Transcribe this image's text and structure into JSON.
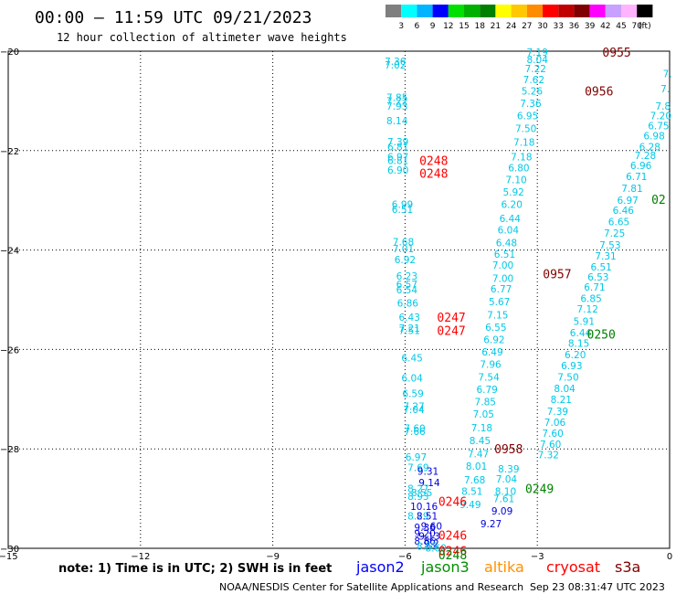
{
  "header": {
    "title": "00:00 – 11:59 UTC 09/21/2023",
    "subtitle": "12 hour collection of altimeter wave heights"
  },
  "legend": {
    "colors": [
      "#7f7f7f",
      "#00ffff",
      "#00b4ff",
      "#0000ff",
      "#00e000",
      "#00b000",
      "#008000",
      "#ffff00",
      "#ffc800",
      "#ff8c00",
      "#ff0000",
      "#c00000",
      "#800000",
      "#ff00ff",
      "#c8a0ff",
      "#ffb4ff",
      "#000000"
    ],
    "labels": [
      "3",
      "6",
      "9",
      "12",
      "15",
      "18",
      "21",
      "24",
      "27",
      "30",
      "33",
      "36",
      "39",
      "42",
      "45",
      "70",
      "(ft)"
    ]
  },
  "footer": {
    "note": "note: 1) Time is in UTC; 2) SWH is in feet",
    "credit": "NOAA/NESDIS Center for Satellite Applications and Research",
    "timestamp": "Sep 23 08:31:47 UTC 2023",
    "satellites": [
      {
        "name": "jason2",
        "color": "#0000ff"
      },
      {
        "name": "jason3",
        "color": "#009000"
      },
      {
        "name": "altika",
        "color": "#ff9000"
      },
      {
        "name": "cryosat",
        "color": "#ff0000"
      },
      {
        "name": "s3a",
        "color": "#800000"
      }
    ]
  },
  "chart_data": {
    "type": "scatter",
    "xlim": [
      -15,
      0
    ],
    "ylim": [
      -30,
      -20
    ],
    "x_ticks": [
      -15,
      -12,
      -9,
      -6,
      -3,
      0
    ],
    "y_ticks": [
      -20,
      -22,
      -24,
      -26,
      -28,
      -30
    ],
    "x_tick_labels": [
      "−15",
      "−12",
      "−9",
      "−6",
      "−3",
      "0"
    ],
    "y_tick_labels": [
      "−20",
      "−22",
      "−24",
      "−26",
      "−28",
      "−30"
    ],
    "grid": true,
    "color_key": {
      "cyan": "#00c8e6",
      "blue": "#0000e0",
      "orange": "#ff9000"
    },
    "points": [
      {
        "x": -6.22,
        "y": -20.2,
        "label": "7.36",
        "c": "cyan"
      },
      {
        "x": -6.22,
        "y": -20.28,
        "label": "7.02",
        "c": "cyan"
      },
      {
        "x": -6.18,
        "y": -20.93,
        "label": "7.85",
        "c": "cyan"
      },
      {
        "x": -6.18,
        "y": -21.0,
        "label": "7.22",
        "c": "cyan"
      },
      {
        "x": -6.18,
        "y": -21.1,
        "label": "7.93",
        "c": "cyan"
      },
      {
        "x": -6.18,
        "y": -21.4,
        "label": "8.14",
        "c": "cyan"
      },
      {
        "x": -6.16,
        "y": -21.82,
        "label": "7.39",
        "c": "cyan"
      },
      {
        "x": -6.16,
        "y": -21.92,
        "label": "6.81",
        "c": "cyan"
      },
      {
        "x": -6.16,
        "y": -22.12,
        "label": "6.97",
        "c": "cyan"
      },
      {
        "x": -6.16,
        "y": -22.2,
        "label": "6.81",
        "c": "cyan"
      },
      {
        "x": -6.16,
        "y": -22.39,
        "label": "6.90",
        "c": "cyan"
      },
      {
        "x": -6.06,
        "y": -23.08,
        "label": "6.99",
        "c": "cyan"
      },
      {
        "x": -6.06,
        "y": -23.18,
        "label": "6.51",
        "c": "cyan"
      },
      {
        "x": -6.04,
        "y": -23.83,
        "label": "7.68",
        "c": "cyan"
      },
      {
        "x": -6.04,
        "y": -23.97,
        "label": "7.01",
        "c": "cyan"
      },
      {
        "x": -6.0,
        "y": -24.19,
        "label": "6.92",
        "c": "cyan"
      },
      {
        "x": -5.96,
        "y": -24.52,
        "label": "6.23",
        "c": "cyan"
      },
      {
        "x": -5.96,
        "y": -24.69,
        "label": "6.57",
        "c": "cyan"
      },
      {
        "x": -5.96,
        "y": -24.8,
        "label": "6.54",
        "c": "cyan"
      },
      {
        "x": -5.94,
        "y": -25.06,
        "label": "6.86",
        "c": "cyan"
      },
      {
        "x": -5.9,
        "y": -25.35,
        "label": "6.43",
        "c": "cyan"
      },
      {
        "x": -5.9,
        "y": -25.57,
        "label": "7.21",
        "c": "cyan"
      },
      {
        "x": -5.9,
        "y": -25.62,
        "label": "7.51",
        "c": "cyan"
      },
      {
        "x": -5.84,
        "y": -26.17,
        "label": "6.45",
        "c": "cyan"
      },
      {
        "x": -5.84,
        "y": -26.57,
        "label": "6.04",
        "c": "cyan"
      },
      {
        "x": -5.82,
        "y": -26.88,
        "label": "6.59",
        "c": "cyan"
      },
      {
        "x": -5.8,
        "y": -27.14,
        "label": "7.27",
        "c": "cyan"
      },
      {
        "x": -5.8,
        "y": -27.21,
        "label": "7.04",
        "c": "cyan"
      },
      {
        "x": -5.78,
        "y": -27.58,
        "label": "7.60",
        "c": "cyan"
      },
      {
        "x": -5.78,
        "y": -27.65,
        "label": "7.66",
        "c": "cyan"
      },
      {
        "x": -5.75,
        "y": -28.16,
        "label": "6.97",
        "c": "cyan"
      },
      {
        "x": -5.7,
        "y": -28.37,
        "label": "7.69",
        "c": "cyan"
      },
      {
        "x": -5.48,
        "y": -28.45,
        "label": "9.31",
        "c": "blue"
      },
      {
        "x": -5.45,
        "y": -28.68,
        "label": "9.14",
        "c": "blue"
      },
      {
        "x": -5.7,
        "y": -28.8,
        "label": "8.27",
        "c": "cyan"
      },
      {
        "x": -5.62,
        "y": -28.88,
        "label": "8.55",
        "c": "cyan"
      },
      {
        "x": -5.7,
        "y": -28.95,
        "label": "8.93",
        "c": "cyan"
      },
      {
        "x": -5.57,
        "y": -29.15,
        "label": "10.16",
        "c": "blue"
      },
      {
        "x": -5.7,
        "y": -29.35,
        "label": "8.29",
        "c": "cyan"
      },
      {
        "x": -5.5,
        "y": -29.35,
        "label": "8.51",
        "c": "blue"
      },
      {
        "x": -5.55,
        "y": -29.58,
        "label": "9.36",
        "c": "blue"
      },
      {
        "x": -5.4,
        "y": -29.55,
        "label": "9.60",
        "c": "blue"
      },
      {
        "x": -5.55,
        "y": -29.7,
        "label": "9.20",
        "c": "blue"
      },
      {
        "x": -5.45,
        "y": -29.75,
        "label": "9.13",
        "c": "blue"
      },
      {
        "x": -5.55,
        "y": -29.85,
        "label": "8.86",
        "c": "blue"
      },
      {
        "x": -5.4,
        "y": -29.9,
        "label": "9.2",
        "c": "blue"
      },
      {
        "x": -5.5,
        "y": -29.95,
        "label": "8.55",
        "c": "cyan"
      },
      {
        "x": -5.3,
        "y": -29.99,
        "label": "8.60",
        "c": "cyan"
      },
      {
        "x": -3.0,
        "y": -20.02,
        "label": "7.19",
        "c": "cyan"
      },
      {
        "x": -3.0,
        "y": -20.17,
        "label": "8.04",
        "c": "cyan"
      },
      {
        "x": -3.04,
        "y": -20.35,
        "label": "7.22",
        "c": "cyan"
      },
      {
        "x": -3.08,
        "y": -20.57,
        "label": "7.62",
        "c": "cyan"
      },
      {
        "x": -3.12,
        "y": -20.8,
        "label": "5.26",
        "c": "cyan"
      },
      {
        "x": -3.15,
        "y": -21.05,
        "label": "7.36",
        "c": "cyan"
      },
      {
        "x": -3.22,
        "y": -21.3,
        "label": "6.95",
        "c": "cyan"
      },
      {
        "x": -3.26,
        "y": -21.55,
        "label": "7.50",
        "c": "cyan"
      },
      {
        "x": -3.3,
        "y": -21.83,
        "label": "7.18",
        "c": "cyan"
      },
      {
        "x": -3.36,
        "y": -22.12,
        "label": "7.18",
        "c": "cyan"
      },
      {
        "x": -3.42,
        "y": -22.34,
        "label": "6.80",
        "c": "cyan"
      },
      {
        "x": -3.48,
        "y": -22.58,
        "label": "7.10",
        "c": "cyan"
      },
      {
        "x": -3.54,
        "y": -22.83,
        "label": "5.92",
        "c": "cyan"
      },
      {
        "x": -3.58,
        "y": -23.08,
        "label": "6.20",
        "c": "cyan"
      },
      {
        "x": -3.62,
        "y": -23.36,
        "label": "6.44",
        "c": "cyan"
      },
      {
        "x": -3.66,
        "y": -23.59,
        "label": "6.04",
        "c": "cyan"
      },
      {
        "x": -3.7,
        "y": -23.85,
        "label": "6.48",
        "c": "cyan"
      },
      {
        "x": -3.74,
        "y": -24.08,
        "label": "6.51",
        "c": "cyan"
      },
      {
        "x": -3.78,
        "y": -24.3,
        "label": "7.00",
        "c": "cyan"
      },
      {
        "x": -3.78,
        "y": -24.57,
        "label": "7.00",
        "c": "cyan"
      },
      {
        "x": -3.82,
        "y": -24.78,
        "label": "6.77",
        "c": "cyan"
      },
      {
        "x": -3.86,
        "y": -25.04,
        "label": "5.67",
        "c": "cyan"
      },
      {
        "x": -3.9,
        "y": -25.3,
        "label": "7.15",
        "c": "cyan"
      },
      {
        "x": -3.94,
        "y": -25.55,
        "label": "6.55",
        "c": "cyan"
      },
      {
        "x": -3.98,
        "y": -25.8,
        "label": "6.92",
        "c": "cyan"
      },
      {
        "x": -4.02,
        "y": -26.05,
        "label": "6.49",
        "c": "cyan"
      },
      {
        "x": -4.06,
        "y": -26.3,
        "label": "7.96",
        "c": "cyan"
      },
      {
        "x": -4.1,
        "y": -26.55,
        "label": "7.54",
        "c": "cyan"
      },
      {
        "x": -4.14,
        "y": -26.8,
        "label": "6.79",
        "c": "cyan"
      },
      {
        "x": -4.18,
        "y": -27.05,
        "label": "7.85",
        "c": "cyan"
      },
      {
        "x": -4.22,
        "y": -27.3,
        "label": "7.05",
        "c": "cyan"
      },
      {
        "x": -4.26,
        "y": -27.57,
        "label": "7.18",
        "c": "cyan"
      },
      {
        "x": -4.3,
        "y": -27.83,
        "label": "8.45",
        "c": "cyan"
      },
      {
        "x": -4.34,
        "y": -28.1,
        "label": "7.47",
        "c": "cyan"
      },
      {
        "x": -4.38,
        "y": -28.35,
        "label": "8.01",
        "c": "cyan"
      },
      {
        "x": -4.42,
        "y": -28.62,
        "label": "7.68",
        "c": "cyan"
      },
      {
        "x": -4.48,
        "y": -28.85,
        "label": "8.51",
        "c": "cyan"
      },
      {
        "x": -4.52,
        "y": -29.12,
        "label": "9.49",
        "c": "cyan"
      },
      {
        "x": -3.65,
        "y": -28.4,
        "label": "8.39",
        "c": "cyan"
      },
      {
        "x": -3.7,
        "y": -28.6,
        "label": "7.04",
        "c": "cyan"
      },
      {
        "x": -3.72,
        "y": -28.85,
        "label": "8.10",
        "c": "cyan"
      },
      {
        "x": -3.76,
        "y": -29.0,
        "label": "7.61",
        "c": "cyan"
      },
      {
        "x": -3.8,
        "y": -29.25,
        "label": "9.09",
        "c": "blue"
      },
      {
        "x": -4.05,
        "y": -29.5,
        "label": "9.27",
        "c": "blue"
      },
      {
        "x": -0.05,
        "y": -20.45,
        "label": "7.",
        "c": "cyan"
      },
      {
        "x": -0.1,
        "y": -20.75,
        "label": "7.",
        "c": "cyan"
      },
      {
        "x": -0.15,
        "y": -21.1,
        "label": "7.8",
        "c": "cyan"
      },
      {
        "x": -0.2,
        "y": -21.3,
        "label": "7.20",
        "c": "cyan"
      },
      {
        "x": -0.25,
        "y": -21.5,
        "label": "6.75",
        "c": "cyan"
      },
      {
        "x": -0.35,
        "y": -21.7,
        "label": "6.98",
        "c": "cyan"
      },
      {
        "x": -0.45,
        "y": -21.92,
        "label": "6.28",
        "c": "cyan"
      },
      {
        "x": -0.55,
        "y": -22.1,
        "label": "7.28",
        "c": "cyan"
      },
      {
        "x": -0.65,
        "y": -22.3,
        "label": "6.96",
        "c": "cyan"
      },
      {
        "x": -0.75,
        "y": -22.52,
        "label": "6.71",
        "c": "cyan"
      },
      {
        "x": -0.85,
        "y": -22.76,
        "label": "7.81",
        "c": "cyan"
      },
      {
        "x": -0.95,
        "y": -23.0,
        "label": "6.97",
        "c": "cyan"
      },
      {
        "x": -1.05,
        "y": -23.2,
        "label": "6.46",
        "c": "cyan"
      },
      {
        "x": -1.15,
        "y": -23.43,
        "label": "6.65",
        "c": "cyan"
      },
      {
        "x": -1.25,
        "y": -23.66,
        "label": "7.25",
        "c": "cyan"
      },
      {
        "x": -1.35,
        "y": -23.9,
        "label": "7.53",
        "c": "cyan"
      },
      {
        "x": -1.45,
        "y": -24.12,
        "label": "7.31",
        "c": "cyan"
      },
      {
        "x": -1.55,
        "y": -24.34,
        "label": "6.51",
        "c": "cyan"
      },
      {
        "x": -1.62,
        "y": -24.54,
        "label": "6.53",
        "c": "cyan"
      },
      {
        "x": -1.7,
        "y": -24.74,
        "label": "6.71",
        "c": "cyan"
      },
      {
        "x": -1.78,
        "y": -24.97,
        "label": "6.85",
        "c": "cyan"
      },
      {
        "x": -1.86,
        "y": -25.18,
        "label": "7.12",
        "c": "cyan"
      },
      {
        "x": -1.94,
        "y": -25.43,
        "label": "5.91",
        "c": "cyan"
      },
      {
        "x": -2.02,
        "y": -25.66,
        "label": "6.44",
        "c": "cyan"
      },
      {
        "x": -2.06,
        "y": -25.87,
        "label": "8.15",
        "c": "cyan"
      },
      {
        "x": -2.14,
        "y": -26.1,
        "label": "6.20",
        "c": "cyan"
      },
      {
        "x": -2.22,
        "y": -26.32,
        "label": "6.93",
        "c": "cyan"
      },
      {
        "x": -2.3,
        "y": -26.55,
        "label": "7.50",
        "c": "cyan"
      },
      {
        "x": -2.38,
        "y": -26.78,
        "label": "8.04",
        "c": "cyan"
      },
      {
        "x": -2.46,
        "y": -27.0,
        "label": "8.21",
        "c": "cyan"
      },
      {
        "x": -2.54,
        "y": -27.24,
        "label": "7.39",
        "c": "cyan"
      },
      {
        "x": -2.6,
        "y": -27.46,
        "label": "7.06",
        "c": "cyan"
      },
      {
        "x": -2.65,
        "y": -27.68,
        "label": "7.60",
        "c": "cyan"
      },
      {
        "x": -2.7,
        "y": -27.9,
        "label": "7.60",
        "c": "cyan"
      },
      {
        "x": -2.75,
        "y": -28.12,
        "label": "7.32",
        "c": "cyan"
      }
    ],
    "track_labels": [
      {
        "x": -1.2,
        "y": -20.02,
        "label": "0955",
        "c": "#800000"
      },
      {
        "x": -1.6,
        "y": -20.8,
        "label": "0956",
        "c": "#800000"
      },
      {
        "x": -5.35,
        "y": -22.2,
        "label": "0248",
        "c": "#ff0000"
      },
      {
        "x": -5.35,
        "y": -22.45,
        "label": "0248",
        "c": "#ff0000"
      },
      {
        "x": -0.25,
        "y": -22.98,
        "label": "02",
        "c": "#008000"
      },
      {
        "x": -2.55,
        "y": -24.48,
        "label": "0957",
        "c": "#800000"
      },
      {
        "x": -4.95,
        "y": -25.35,
        "label": "0247",
        "c": "#ff0000"
      },
      {
        "x": -4.95,
        "y": -25.62,
        "label": "0247",
        "c": "#ff0000"
      },
      {
        "x": -1.55,
        "y": -25.69,
        "label": "0250",
        "c": "#008000"
      },
      {
        "x": -3.65,
        "y": -28.0,
        "label": "0958",
        "c": "#800000"
      },
      {
        "x": -2.95,
        "y": -28.8,
        "label": "0249",
        "c": "#008000"
      },
      {
        "x": -4.92,
        "y": -29.05,
        "label": "0246",
        "c": "#ff0000"
      },
      {
        "x": -4.92,
        "y": -29.73,
        "label": "0246",
        "c": "#ff0000"
      },
      {
        "x": -4.92,
        "y": -30.05,
        "label": "0246",
        "c": "#ff0000"
      },
      {
        "x": -4.92,
        "y": -30.13,
        "label": "0248",
        "c": "#008000"
      }
    ]
  }
}
